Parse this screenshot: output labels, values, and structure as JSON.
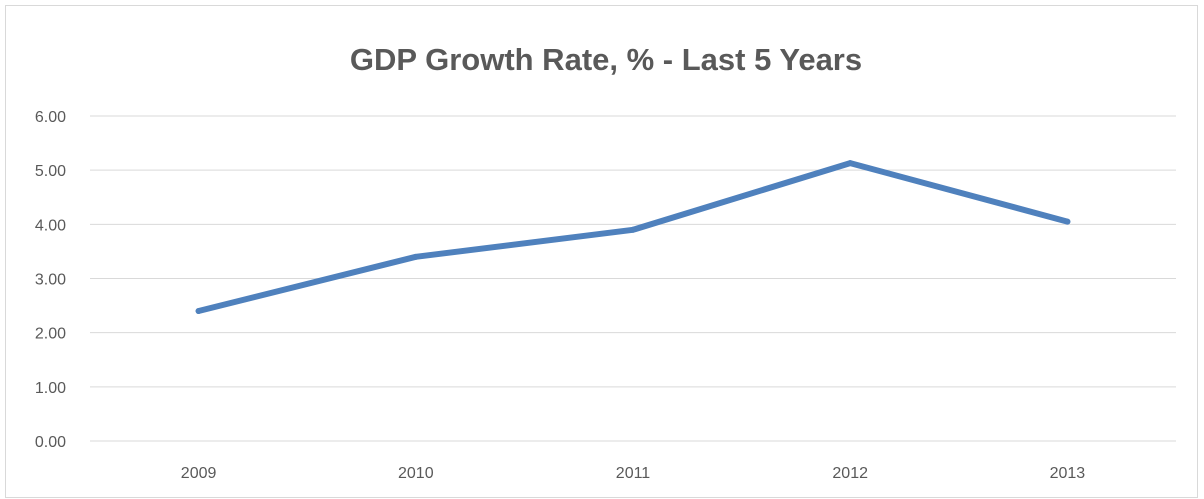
{
  "chart_data": {
    "type": "line",
    "title": "GDP Growth Rate, % - Last 5 Years",
    "xlabel": "",
    "ylabel": "",
    "categories": [
      "2009",
      "2010",
      "2011",
      "2012",
      "2013"
    ],
    "series": [
      {
        "values": [
          2.4,
          3.4,
          3.9,
          5.13,
          4.05
        ],
        "color": "#4f81bd"
      }
    ],
    "y_ticks": [
      "0.00",
      "1.00",
      "2.00",
      "3.00",
      "4.00",
      "5.00",
      "6.00"
    ],
    "ylim": [
      0,
      6
    ],
    "grid": true,
    "legend": "none"
  }
}
